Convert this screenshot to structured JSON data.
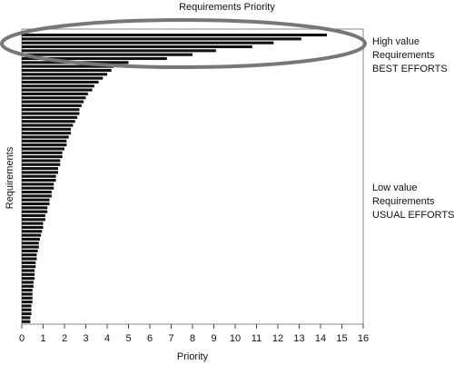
{
  "chart_data": {
    "type": "bar",
    "orientation": "horizontal",
    "title": "Requirements Priority",
    "xlabel": "Priority",
    "ylabel": "Requirements",
    "xlim": [
      0,
      16
    ],
    "xticks": [
      "0",
      "1",
      "2",
      "3",
      "4",
      "5",
      "6",
      "7",
      "8",
      "9",
      "10",
      "11",
      "12",
      "13",
      "14",
      "15",
      "16"
    ],
    "grid": false,
    "values": [
      14.3,
      13.1,
      11.8,
      10.8,
      9.1,
      8.0,
      6.8,
      5.0,
      4.3,
      4.2,
      4.0,
      3.8,
      3.6,
      3.4,
      3.3,
      3.1,
      3.0,
      2.9,
      2.8,
      2.7,
      2.7,
      2.6,
      2.5,
      2.4,
      2.3,
      2.3,
      2.2,
      2.1,
      2.1,
      2.0,
      1.9,
      1.9,
      1.8,
      1.8,
      1.7,
      1.7,
      1.6,
      1.6,
      1.5,
      1.5,
      1.4,
      1.4,
      1.3,
      1.3,
      1.2,
      1.2,
      1.1,
      1.1,
      1.0,
      1.0,
      0.95,
      0.9,
      0.85,
      0.8,
      0.8,
      0.75,
      0.7,
      0.7,
      0.65,
      0.65,
      0.6,
      0.6,
      0.6,
      0.55,
      0.55,
      0.5,
      0.5,
      0.5,
      0.5,
      0.45,
      0.45,
      0.45,
      0.4,
      0.4
    ],
    "annotations": [
      {
        "lines": [
          "High value",
          "Requirements",
          "BEST EFFORTS"
        ]
      },
      {
        "lines": [
          "Low value",
          "Requirements",
          "USUAL EFFORTS"
        ]
      }
    ],
    "highlight": "ellipse around the highest-priority bars"
  }
}
